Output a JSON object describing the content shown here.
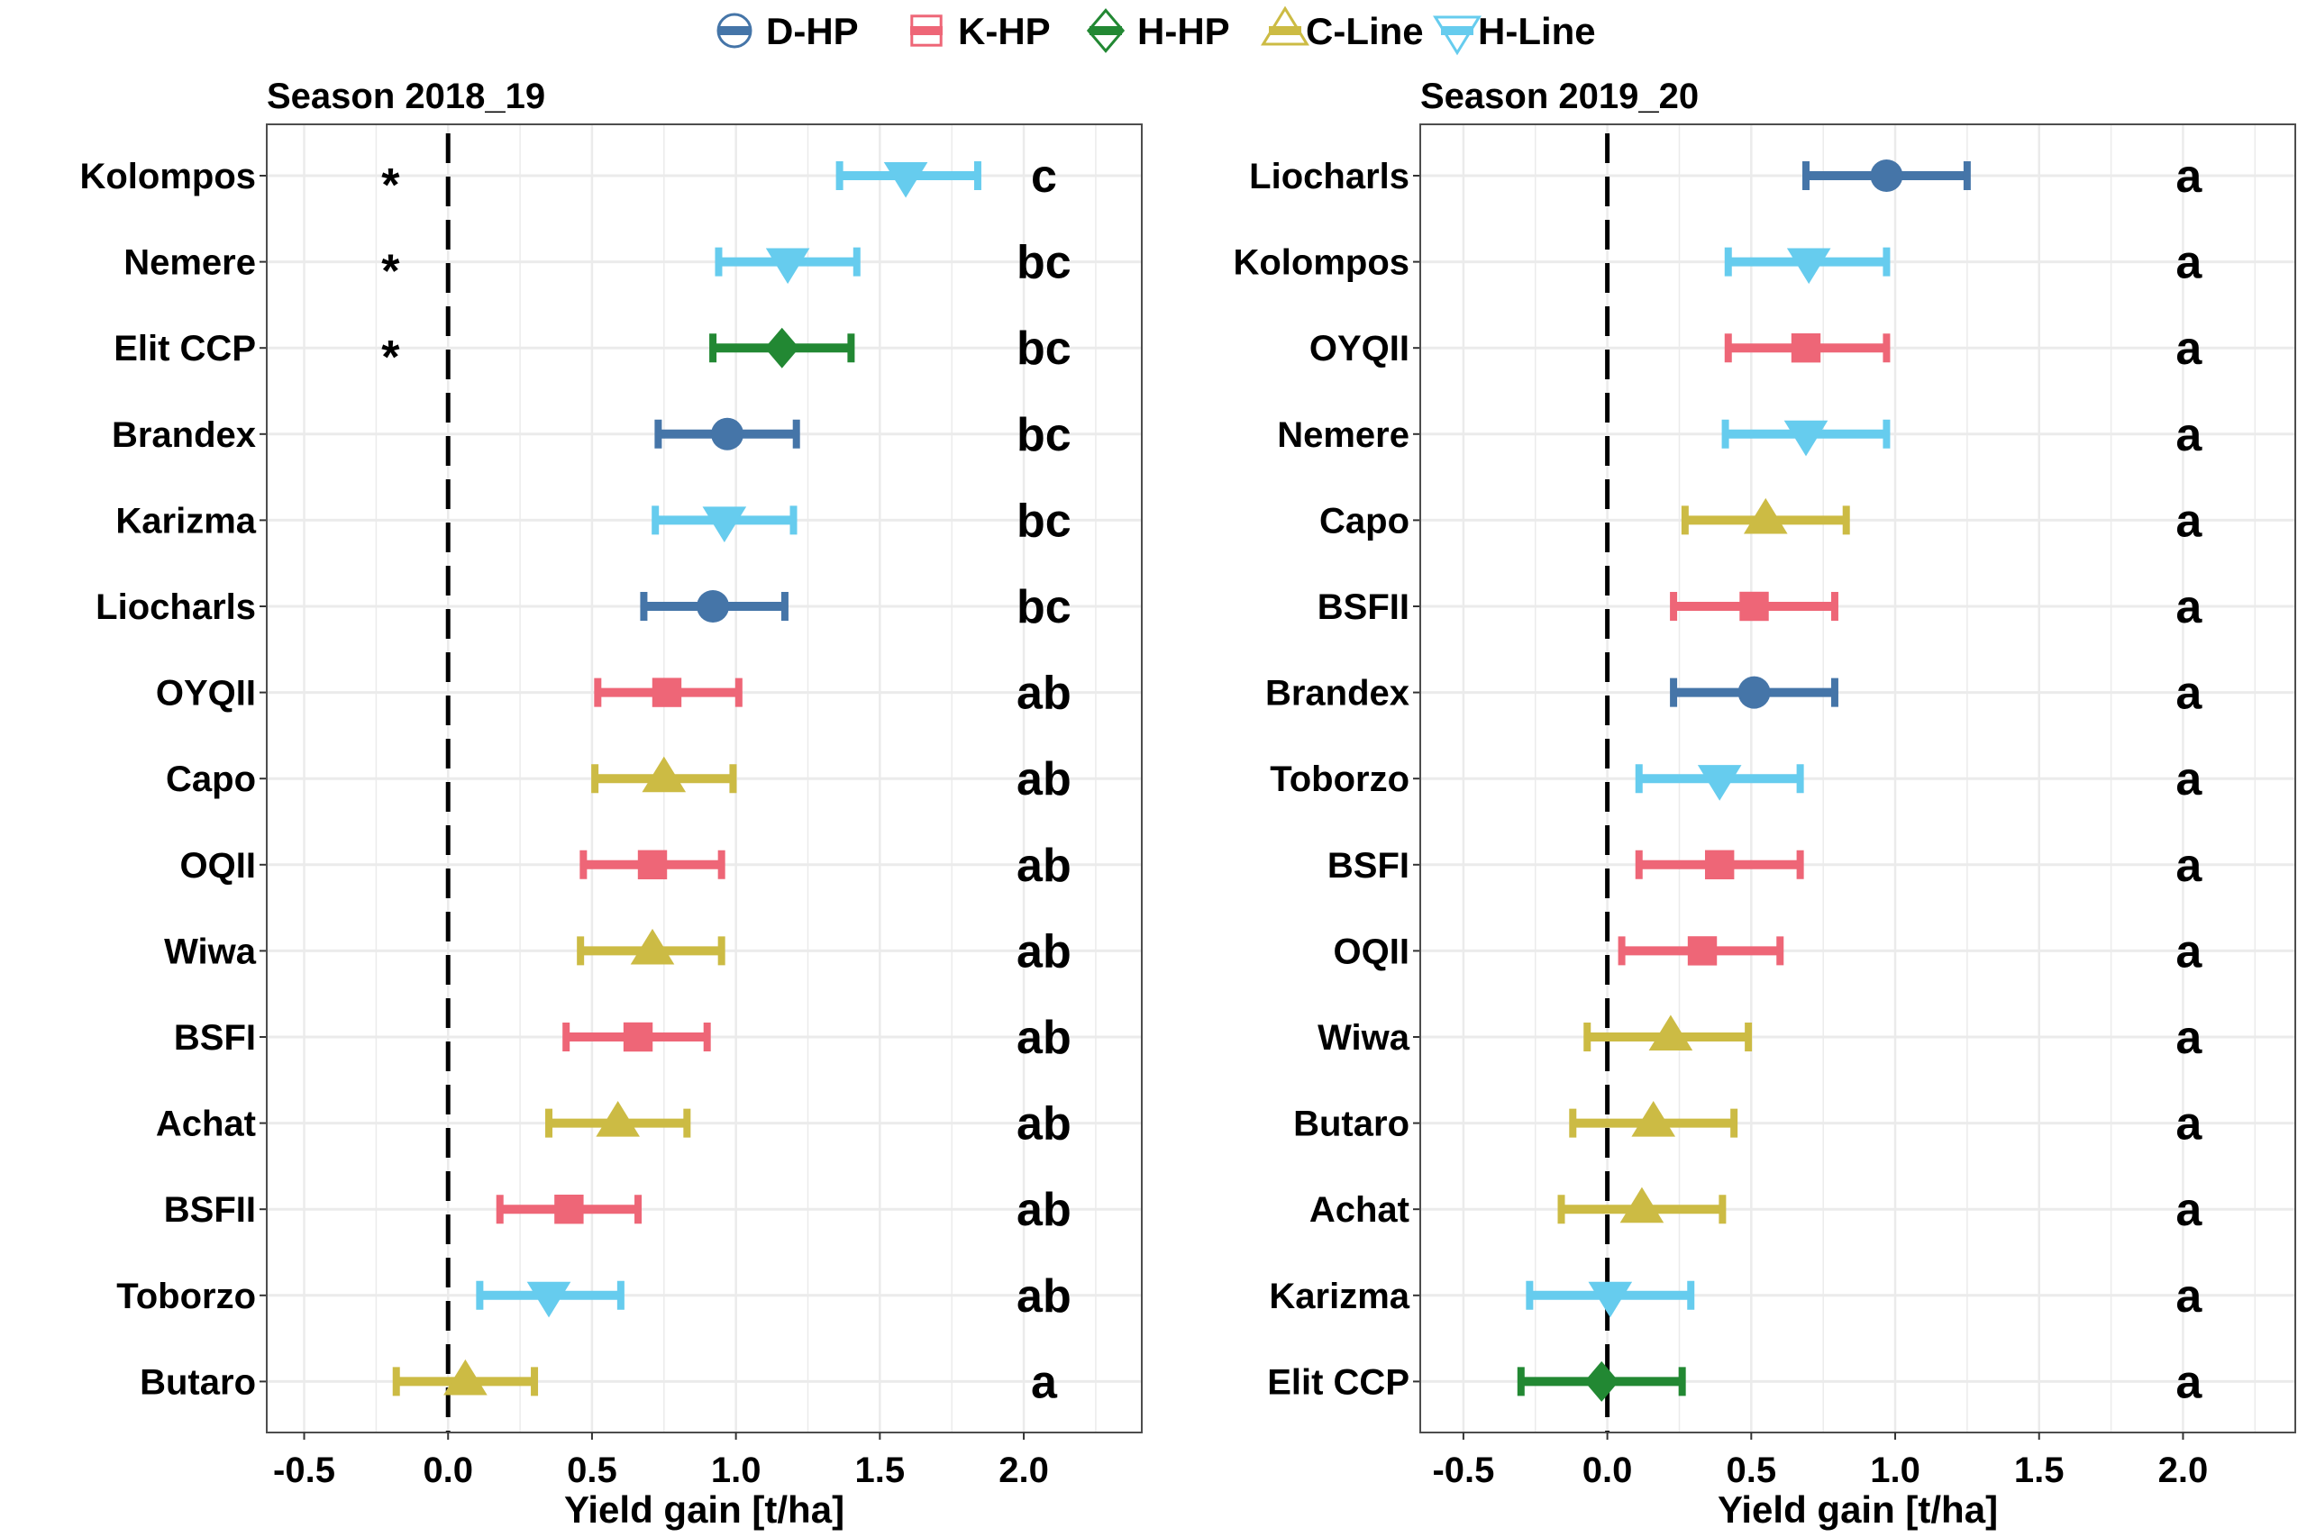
{
  "chart_data": {
    "type": "scatter",
    "subtype": "forest-plot-point-with-error-bars",
    "legend": {
      "placement": "top-center",
      "entries": [
        {
          "key": "D-HP",
          "label": "D-HP",
          "shape": "circle",
          "color": "#4575a8"
        },
        {
          "key": "K-HP",
          "label": "K-HP",
          "shape": "square",
          "color": "#ee6677"
        },
        {
          "key": "H-HP",
          "label": "H-HP",
          "shape": "diamond",
          "color": "#228833"
        },
        {
          "key": "C-Line",
          "label": "C-Line",
          "shape": "triangle-up",
          "color": "#ccbb44"
        },
        {
          "key": "H-Line",
          "label": "H-Line",
          "shape": "triangle-down",
          "color": "#66ccee"
        }
      ]
    },
    "reference_line": {
      "x": 0.0,
      "style": "dashed",
      "color": "#000000"
    },
    "panels": [
      {
        "title": "Season 2018_19",
        "xlabel": "Yield gain [t/ha]",
        "xlim": [
          -0.63,
          2.41
        ],
        "xticks": [
          -0.5,
          0.0,
          0.5,
          1.0,
          1.5,
          2.0
        ],
        "xtick_labels": [
          "-0.5",
          "0.0",
          "0.5",
          "1.0",
          "1.5",
          "2.0"
        ],
        "grid": true,
        "letter_x": 2.07,
        "star_x": -0.2,
        "rows": [
          {
            "label": "Kolompos",
            "group": "H-Line",
            "value": 1.59,
            "lower": 1.36,
            "upper": 1.84,
            "letter": "c",
            "star": "*"
          },
          {
            "label": "Nemere",
            "group": "H-Line",
            "value": 1.18,
            "lower": 0.94,
            "upper": 1.42,
            "letter": "bc",
            "star": "*"
          },
          {
            "label": "Elit CCP",
            "group": "H-HP",
            "value": 1.16,
            "lower": 0.92,
            "upper": 1.4,
            "letter": "bc",
            "star": "*"
          },
          {
            "label": "Brandex",
            "group": "D-HP",
            "value": 0.97,
            "lower": 0.73,
            "upper": 1.21,
            "letter": "bc",
            "star": ""
          },
          {
            "label": "Karizma",
            "group": "H-Line",
            "value": 0.96,
            "lower": 0.72,
            "upper": 1.2,
            "letter": "bc",
            "star": ""
          },
          {
            "label": "Liocharls",
            "group": "D-HP",
            "value": 0.92,
            "lower": 0.68,
            "upper": 1.17,
            "letter": "bc",
            "star": ""
          },
          {
            "label": "OYQII",
            "group": "K-HP",
            "value": 0.76,
            "lower": 0.52,
            "upper": 1.01,
            "letter": "ab",
            "star": ""
          },
          {
            "label": "Capo",
            "group": "C-Line",
            "value": 0.75,
            "lower": 0.51,
            "upper": 0.99,
            "letter": "ab",
            "star": ""
          },
          {
            "label": "OQII",
            "group": "K-HP",
            "value": 0.71,
            "lower": 0.47,
            "upper": 0.95,
            "letter": "ab",
            "star": ""
          },
          {
            "label": "Wiwa",
            "group": "C-Line",
            "value": 0.71,
            "lower": 0.46,
            "upper": 0.95,
            "letter": "ab",
            "star": ""
          },
          {
            "label": "BSFI",
            "group": "K-HP",
            "value": 0.66,
            "lower": 0.41,
            "upper": 0.9,
            "letter": "ab",
            "star": ""
          },
          {
            "label": "Achat",
            "group": "C-Line",
            "value": 0.59,
            "lower": 0.35,
            "upper": 0.83,
            "letter": "ab",
            "star": ""
          },
          {
            "label": "BSFII",
            "group": "K-HP",
            "value": 0.42,
            "lower": 0.18,
            "upper": 0.66,
            "letter": "ab",
            "star": ""
          },
          {
            "label": "Toborzo",
            "group": "H-Line",
            "value": 0.35,
            "lower": 0.11,
            "upper": 0.6,
            "letter": "ab",
            "star": ""
          },
          {
            "label": "Butaro",
            "group": "C-Line",
            "value": 0.06,
            "lower": -0.18,
            "upper": 0.3,
            "letter": "a",
            "star": ""
          }
        ]
      },
      {
        "title": "Season 2019_20",
        "xlabel": "Yield gain [t/ha]",
        "xlim": [
          -0.65,
          2.39
        ],
        "xticks": [
          -0.5,
          0.0,
          0.5,
          1.0,
          1.5,
          2.0
        ],
        "xtick_labels": [
          "-0.5",
          "0.0",
          "0.5",
          "1.0",
          "1.5",
          "2.0"
        ],
        "grid": true,
        "letter_x": 2.02,
        "star_x": -0.2,
        "rows": [
          {
            "label": "Liocharls",
            "group": "D-HP",
            "value": 0.97,
            "lower": 0.69,
            "upper": 1.25,
            "letter": "a",
            "star": ""
          },
          {
            "label": "Kolompos",
            "group": "H-Line",
            "value": 0.7,
            "lower": 0.42,
            "upper": 0.97,
            "letter": "a",
            "star": ""
          },
          {
            "label": "OYQII",
            "group": "K-HP",
            "value": 0.69,
            "lower": 0.42,
            "upper": 0.97,
            "letter": "a",
            "star": ""
          },
          {
            "label": "Nemere",
            "group": "H-Line",
            "value": 0.69,
            "lower": 0.41,
            "upper": 0.97,
            "letter": "a",
            "star": ""
          },
          {
            "label": "Capo",
            "group": "C-Line",
            "value": 0.55,
            "lower": 0.27,
            "upper": 0.83,
            "letter": "a",
            "star": ""
          },
          {
            "label": "BSFII",
            "group": "K-HP",
            "value": 0.51,
            "lower": 0.23,
            "upper": 0.79,
            "letter": "a",
            "star": ""
          },
          {
            "label": "Brandex",
            "group": "D-HP",
            "value": 0.51,
            "lower": 0.23,
            "upper": 0.79,
            "letter": "a",
            "star": ""
          },
          {
            "label": "Toborzo",
            "group": "H-Line",
            "value": 0.39,
            "lower": 0.11,
            "upper": 0.67,
            "letter": "a",
            "star": ""
          },
          {
            "label": "BSFI",
            "group": "K-HP",
            "value": 0.39,
            "lower": 0.11,
            "upper": 0.67,
            "letter": "a",
            "star": ""
          },
          {
            "label": "OQII",
            "group": "K-HP",
            "value": 0.33,
            "lower": 0.05,
            "upper": 0.6,
            "letter": "a",
            "star": ""
          },
          {
            "label": "Wiwa",
            "group": "C-Line",
            "value": 0.22,
            "lower": -0.07,
            "upper": 0.49,
            "letter": "a",
            "star": ""
          },
          {
            "label": "Butaro",
            "group": "C-Line",
            "value": 0.16,
            "lower": -0.12,
            "upper": 0.44,
            "letter": "a",
            "star": ""
          },
          {
            "label": "Achat",
            "group": "C-Line",
            "value": 0.12,
            "lower": -0.16,
            "upper": 0.4,
            "letter": "a",
            "star": ""
          },
          {
            "label": "Karizma",
            "group": "H-Line",
            "value": 0.01,
            "lower": -0.27,
            "upper": 0.29,
            "letter": "a",
            "star": ""
          },
          {
            "label": "Elit CCP",
            "group": "H-HP",
            "value": -0.02,
            "lower": -0.3,
            "upper": 0.26,
            "letter": "a",
            "star": ""
          }
        ]
      }
    ]
  }
}
